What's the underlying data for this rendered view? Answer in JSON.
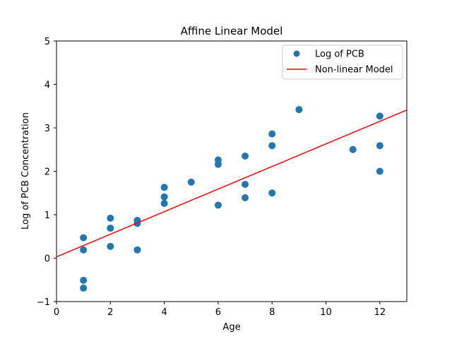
{
  "chart_data": {
    "type": "scatter",
    "title": "Affine Linear Model",
    "xlabel": "Age",
    "ylabel": "Log of PCB Concentration",
    "xlim": [
      0,
      13
    ],
    "ylim": [
      -1,
      5
    ],
    "xticks": [
      0,
      2,
      4,
      6,
      8,
      10,
      12
    ],
    "yticks": [
      -1,
      0,
      1,
      2,
      3,
      4,
      5
    ],
    "grid": false,
    "legend_position": "top-right",
    "series": [
      {
        "name": "Log of PCB",
        "kind": "scatter",
        "color": "#1f77b4",
        "points": [
          [
            1,
            0.47
          ],
          [
            1,
            0.19
          ],
          [
            1,
            -0.51
          ],
          [
            1,
            -0.69
          ],
          [
            2,
            0.92
          ],
          [
            2,
            0.69
          ],
          [
            2,
            0.27
          ],
          [
            3,
            0.87
          ],
          [
            3,
            0.8
          ],
          [
            3,
            0.19
          ],
          [
            4,
            1.63
          ],
          [
            4,
            1.41
          ],
          [
            4,
            1.26
          ],
          [
            5,
            1.75
          ],
          [
            6,
            2.26
          ],
          [
            6,
            2.16
          ],
          [
            6,
            1.22
          ],
          [
            7,
            2.35
          ],
          [
            7,
            1.7
          ],
          [
            7,
            1.39
          ],
          [
            8,
            2.86
          ],
          [
            8,
            2.59
          ],
          [
            8,
            1.5
          ],
          [
            9,
            3.42
          ],
          [
            11,
            2.5
          ],
          [
            12,
            3.27
          ],
          [
            12,
            2.59
          ],
          [
            12,
            2.0
          ]
        ]
      },
      {
        "name": "Non-linear Model",
        "kind": "line",
        "color": "#ff0000",
        "x": [
          0,
          13
        ],
        "y": [
          0.03,
          3.41
        ]
      }
    ]
  }
}
